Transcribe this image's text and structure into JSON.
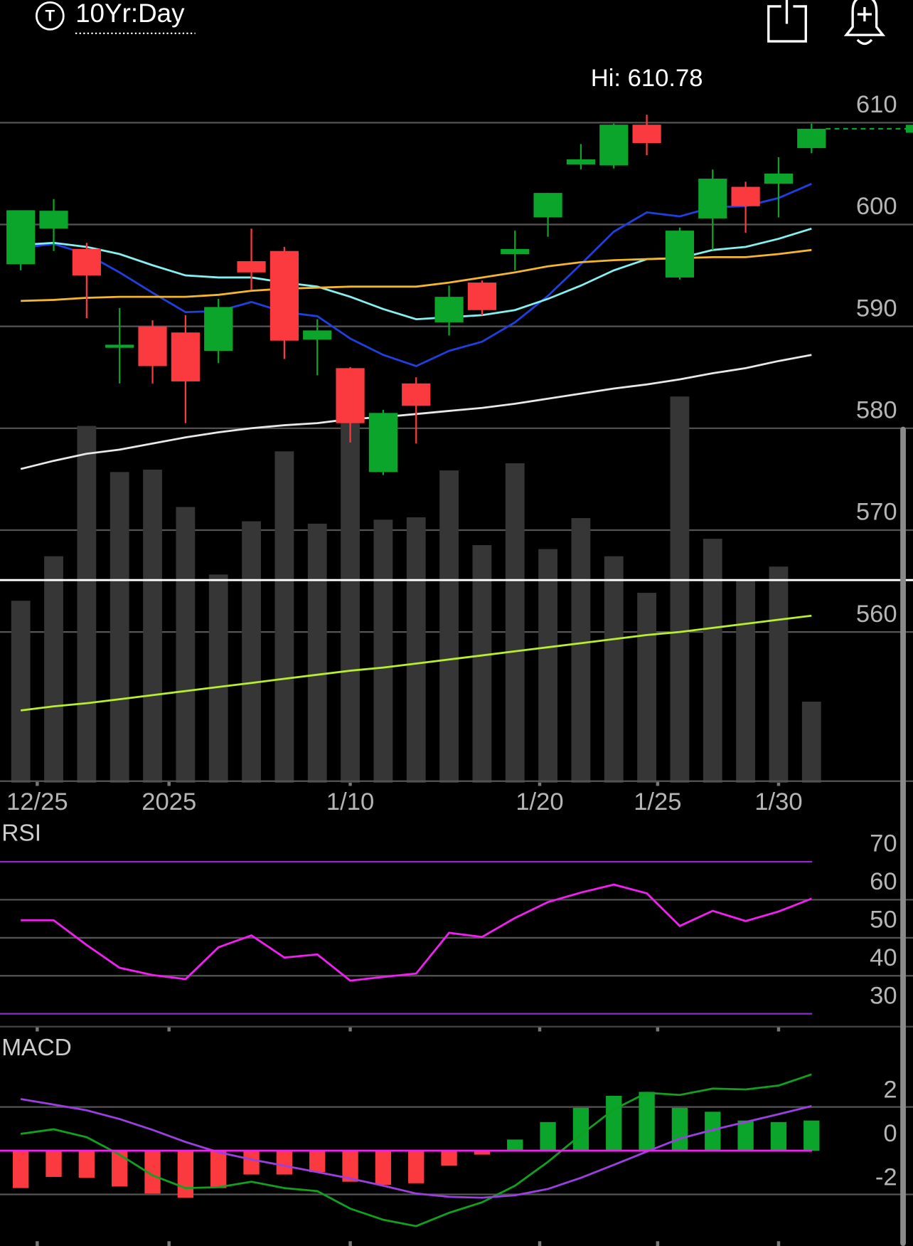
{
  "header": {
    "title": "10Yr:Day"
  },
  "chart_data": [
    {
      "type": "candlestick",
      "annotation": "Hi: 610.78",
      "x": [
        0,
        1,
        2,
        3,
        4,
        5,
        6,
        7,
        8,
        9,
        10,
        11,
        12,
        13,
        14,
        15,
        16,
        17,
        18,
        19,
        20,
        21,
        22,
        23,
        24
      ],
      "xlim": [
        -0.63,
        27.08
      ],
      "xticks": [
        {
          "value": 0.5,
          "label": "12/25"
        },
        {
          "value": 4.5,
          "label": "2025"
        },
        {
          "value": 10,
          "label": "1/10"
        },
        {
          "value": 15.75,
          "label": "1/20"
        },
        {
          "value": 19.33,
          "label": "1/25"
        },
        {
          "value": 23,
          "label": "1/30"
        }
      ],
      "ylim": [
        545.2,
        615.8
      ],
      "yticks": [
        610,
        600,
        590,
        580,
        570,
        560
      ],
      "grid": true,
      "up_color": "#0aa52a",
      "down_color": "#fb3a3f",
      "open": [
        596.1,
        599.6,
        597.6,
        587.9,
        590.0,
        589.4,
        587.6,
        596.4,
        597.4,
        588.7,
        585.9,
        575.7,
        584.4,
        590.4,
        594.3,
        597.1,
        600.7,
        605.9,
        605.8,
        609.8,
        594.8,
        600.6,
        603.7,
        604.0,
        607.5
      ],
      "high": [
        601.4,
        602.5,
        598.2,
        591.8,
        590.6,
        591.1,
        592.7,
        599.6,
        597.8,
        590.7,
        586.0,
        581.8,
        585.0,
        594.0,
        594.5,
        599.4,
        603.1,
        607.9,
        609.9,
        610.78,
        599.7,
        605.4,
        604.2,
        606.6,
        609.9
      ],
      "low": [
        595.5,
        597.4,
        590.8,
        584.4,
        584.4,
        580.5,
        586.4,
        593.6,
        586.8,
        585.2,
        578.6,
        575.4,
        578.5,
        589.1,
        591.1,
        595.5,
        598.8,
        605.4,
        605.5,
        606.8,
        594.6,
        597.5,
        599.2,
        600.7,
        607.0
      ],
      "close": [
        601.4,
        601.35,
        595.0,
        588.2,
        586.1,
        584.6,
        591.9,
        595.3,
        588.6,
        589.6,
        580.5,
        581.5,
        582.2,
        592.9,
        591.6,
        597.6,
        603.1,
        606.4,
        609.8,
        608.0,
        599.4,
        604.5,
        601.8,
        605.0,
        609.4
      ],
      "volume": {
        "color": "#363636",
        "vlim": [
          0,
          500
        ],
        "values": [
          229,
          285,
          449,
          391,
          394,
          347,
          262,
          329,
          417,
          326,
          453,
          331,
          334,
          393,
          299,
          402,
          294,
          333,
          285,
          239,
          486,
          307,
          256,
          272,
          102
        ]
      },
      "series": [
        {
          "color": "#1f3fe0",
          "values": [
            597.7,
            598.1,
            597.1,
            595.3,
            593.3,
            591.4,
            591.5,
            592.4,
            591.4,
            591.0,
            588.8,
            587.2,
            586.1,
            587.6,
            588.5,
            590.4,
            593.0,
            596.1,
            599.3,
            601.2,
            600.8,
            601.7,
            601.8,
            602.6,
            604.0
          ]
        },
        {
          "color": "#86f0f0",
          "values": [
            598.0,
            598.2,
            597.8,
            597.1,
            596.0,
            595.0,
            594.8,
            594.8,
            594.3,
            593.9,
            592.9,
            591.7,
            590.7,
            590.9,
            591.1,
            591.6,
            592.7,
            594.0,
            595.5,
            596.6,
            596.7,
            597.5,
            597.8,
            598.6,
            599.6
          ]
        },
        {
          "color": "#f5b72a",
          "values": [
            592.5,
            592.6,
            592.8,
            592.9,
            592.9,
            592.9,
            593.1,
            593.5,
            593.7,
            593.8,
            593.9,
            593.9,
            593.9,
            594.3,
            594.8,
            595.3,
            595.9,
            596.3,
            596.5,
            596.6,
            596.7,
            596.8,
            596.8,
            597.1,
            597.5
          ]
        },
        {
          "color": "#e8e8e8",
          "values": [
            576.0,
            576.8,
            577.5,
            577.9,
            578.5,
            579.1,
            579.6,
            580.0,
            580.3,
            580.5,
            580.9,
            581.1,
            581.4,
            581.7,
            582.0,
            582.4,
            582.9,
            583.4,
            583.9,
            584.3,
            584.8,
            585.4,
            585.9,
            586.6,
            587.2
          ]
        },
        {
          "color": "#b8ef2c",
          "values": [
            552.3,
            552.7,
            553.0,
            553.4,
            553.8,
            554.2,
            554.6,
            555.0,
            555.4,
            555.8,
            556.2,
            556.5,
            556.9,
            557.3,
            557.7,
            558.1,
            558.5,
            558.9,
            559.3,
            559.7,
            560.0,
            560.4,
            560.8,
            561.2,
            561.6
          ]
        }
      ]
    },
    {
      "type": "line",
      "title": "RSI",
      "ylim": [
        26.6,
        79.3
      ],
      "yticks": [
        70,
        60,
        50,
        40,
        30
      ],
      "grid": true,
      "levels": [
        70,
        30
      ],
      "level_color": "#8e2bd0",
      "series": [
        {
          "color": "#f21ef2",
          "values": [
            54.6,
            54.6,
            48.1,
            42.1,
            40.2,
            39.1,
            47.5,
            50.6,
            44.8,
            45.6,
            38.7,
            39.7,
            40.6,
            51.3,
            50.2,
            55.2,
            59.4,
            61.9,
            64.0,
            61.7,
            53.1,
            57.1,
            54.4,
            56.9,
            60.3
          ]
        }
      ]
    },
    {
      "type": "macd",
      "title": "MACD",
      "ylim": [
        -4.36,
        5.2
      ],
      "yticks": [
        2,
        0,
        -2
      ],
      "grid": true,
      "zero_color": "#f21ef2",
      "histogram": {
        "up_color": "#0aa52a",
        "down_color": "#fb3a3f",
        "values": [
          -1.71,
          -1.2,
          -1.24,
          -1.64,
          -1.96,
          -2.15,
          -1.71,
          -1.09,
          -1.09,
          -0.98,
          -1.42,
          -1.56,
          -1.49,
          -0.69,
          -0.18,
          0.51,
          1.31,
          1.96,
          2.51,
          2.69,
          1.96,
          1.78,
          1.38,
          1.31,
          1.38
        ]
      },
      "series": [
        {
          "color": "#11a020",
          "values": [
            0.77,
            0.98,
            0.62,
            -0.18,
            -1.13,
            -1.71,
            -1.67,
            -1.42,
            -1.71,
            -1.85,
            -2.65,
            -3.16,
            -3.45,
            -2.84,
            -2.36,
            -1.6,
            -0.51,
            0.73,
            1.89,
            2.65,
            2.55,
            2.84,
            2.8,
            2.98,
            3.49
          ]
        },
        {
          "color": "#9a3fe0",
          "values": [
            2.36,
            2.11,
            1.85,
            1.45,
            0.95,
            0.4,
            -0.07,
            -0.4,
            -0.69,
            -0.98,
            -1.27,
            -1.6,
            -1.96,
            -2.11,
            -2.15,
            -2.04,
            -1.75,
            -1.24,
            -0.65,
            -0.04,
            0.55,
            0.95,
            1.31,
            1.67,
            2.04
          ]
        }
      ]
    }
  ]
}
